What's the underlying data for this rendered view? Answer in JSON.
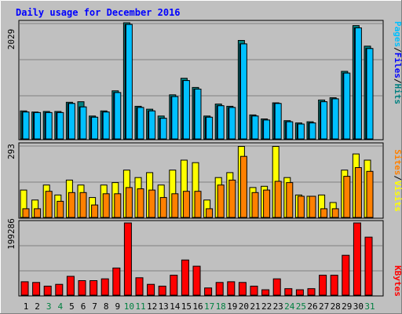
{
  "chart_data": [
    {
      "type": "bar",
      "title": "Daily usage for December 2016",
      "ylabel_top": "2029",
      "legend": [
        "Pages",
        "Files",
        "Hits"
      ],
      "legend_separator": "/",
      "categories": [
        "1",
        "2",
        "3",
        "4",
        "5",
        "6",
        "7",
        "8",
        "9",
        "10",
        "11",
        "12",
        "13",
        "14",
        "15",
        "16",
        "17",
        "18",
        "19",
        "20",
        "21",
        "22",
        "23",
        "24",
        "25",
        "26",
        "27",
        "28",
        "29",
        "30",
        "31"
      ],
      "weekend_days": [
        "3",
        "4",
        "10",
        "11",
        "17",
        "18",
        "24",
        "25",
        "31"
      ],
      "ylim": [
        0,
        2029
      ],
      "series": [
        {
          "name": "Hits",
          "values": [
            490,
            470,
            480,
            480,
            640,
            650,
            400,
            490,
            840,
            2029,
            570,
            520,
            400,
            770,
            1060,
            900,
            400,
            610,
            570,
            1720,
            420,
            350,
            630,
            320,
            280,
            300,
            680,
            720,
            1180,
            1980,
            1620
          ]
        },
        {
          "name": "Files",
          "values": [
            470,
            460,
            460,
            460,
            620,
            560,
            380,
            470,
            810,
            2000,
            550,
            490,
            360,
            740,
            1020,
            870,
            380,
            580,
            550,
            1660,
            400,
            330,
            620,
            300,
            260,
            280,
            650,
            700,
            1150,
            1940,
            1580
          ]
        },
        {
          "name": "Pages",
          "values": [
            470,
            460,
            460,
            460,
            620,
            560,
            380,
            470,
            810,
            2000,
            550,
            490,
            360,
            740,
            1020,
            870,
            380,
            580,
            550,
            1660,
            400,
            330,
            620,
            300,
            260,
            280,
            650,
            700,
            1150,
            1940,
            1580
          ]
        }
      ]
    },
    {
      "type": "bar",
      "ylabel_top": "293",
      "legend": [
        "Sites",
        "Visits"
      ],
      "legend_separator": "/",
      "ylim": [
        0,
        293
      ],
      "series": [
        {
          "name": "Visits",
          "values": [
            110,
            70,
            130,
            90,
            150,
            130,
            80,
            130,
            140,
            190,
            160,
            180,
            130,
            190,
            230,
            220,
            70,
            160,
            180,
            285,
            120,
            125,
            285,
            160,
            90,
            85,
            90,
            60,
            190,
            255,
            230
          ]
        },
        {
          "name": "Sites",
          "values": [
            35,
            35,
            105,
            65,
            100,
            100,
            50,
            95,
            95,
            120,
            115,
            110,
            80,
            95,
            105,
            105,
            35,
            130,
            150,
            245,
            100,
            110,
            145,
            140,
            85,
            85,
            35,
            35,
            165,
            200,
            185
          ]
        }
      ]
    },
    {
      "type": "bar",
      "ylabel_top": "199286",
      "legend": [
        "KBytes"
      ],
      "ylim": [
        0,
        199286
      ],
      "series": [
        {
          "name": "KBytes",
          "values": [
            37000,
            35000,
            25000,
            30000,
            52000,
            40000,
            40000,
            45000,
            75000,
            199286,
            48000,
            30000,
            25000,
            55000,
            97000,
            80000,
            20000,
            35000,
            37000,
            35000,
            25000,
            15000,
            45000,
            18000,
            15000,
            18000,
            55000,
            55000,
            110000,
            199286,
            160000
          ]
        }
      ]
    }
  ]
}
